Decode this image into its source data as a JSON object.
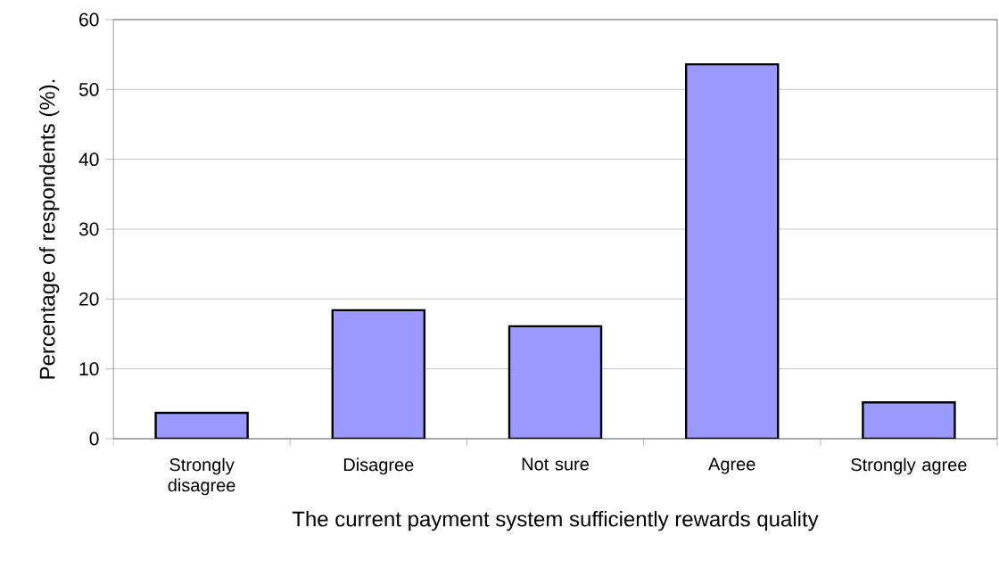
{
  "chart_data": {
    "type": "bar",
    "xlabel": "The current payment system sufficiently rewards quality",
    "ylabel": "Percentage of respondents (%).",
    "categories": [
      "Strongly disagree",
      "Disagree",
      "Not sure",
      "Agree",
      "Strongly agree"
    ],
    "values": [
      3.7,
      18.4,
      16.1,
      53.6,
      5.2
    ],
    "color": "#9999ff",
    "ylim": [
      0,
      60
    ],
    "yticks": [
      0,
      10,
      20,
      30,
      40,
      50,
      60
    ],
    "grid": "y"
  }
}
